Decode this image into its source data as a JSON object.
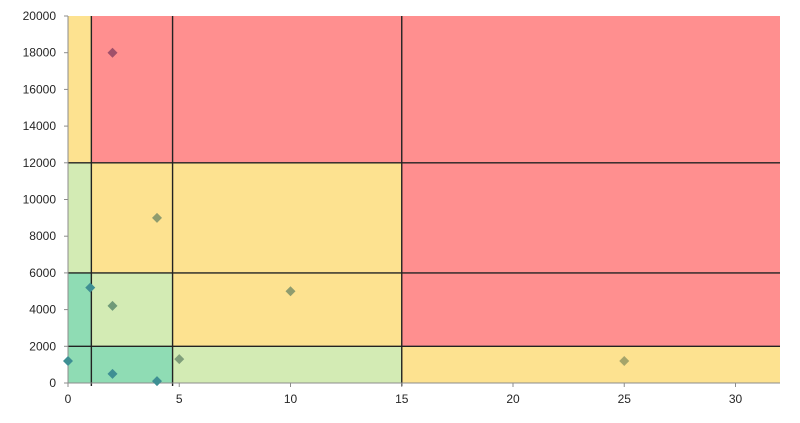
{
  "chart_data": {
    "type": "scatter",
    "title": "",
    "xlabel": "",
    "ylabel": "",
    "xlim": [
      0,
      32
    ],
    "ylim": [
      0,
      20000
    ],
    "x_ticks": [
      0,
      5,
      10,
      15,
      20,
      25,
      30
    ],
    "y_ticks": [
      0,
      2000,
      4000,
      6000,
      8000,
      10000,
      12000,
      14000,
      16000,
      18000,
      20000
    ],
    "grid": false,
    "legend": "none",
    "zone_colors": {
      "red": "#ff8f8f",
      "yellow": "#fde290",
      "lightgreen": "#d3ebb4",
      "green": "#8fdcb4",
      "divider": "#222222"
    },
    "zones": [
      {
        "x": [
          0,
          32
        ],
        "y": [
          12000,
          20000
        ],
        "color": "red"
      },
      {
        "x": [
          0,
          1.05
        ],
        "y": [
          12000,
          20000
        ],
        "color": "yellow"
      },
      {
        "x": [
          0,
          32
        ],
        "y": [
          6000,
          12000
        ],
        "color": "red"
      },
      {
        "x": [
          0,
          15
        ],
        "y": [
          6000,
          12000
        ],
        "color": "yellow"
      },
      {
        "x": [
          0,
          1.05
        ],
        "y": [
          6000,
          12000
        ],
        "color": "lightgreen"
      },
      {
        "x": [
          0,
          32
        ],
        "y": [
          2000,
          6000
        ],
        "color": "red"
      },
      {
        "x": [
          0,
          15
        ],
        "y": [
          2000,
          6000
        ],
        "color": "yellow"
      },
      {
        "x": [
          0,
          4.7
        ],
        "y": [
          2000,
          6000
        ],
        "color": "lightgreen"
      },
      {
        "x": [
          0,
          1.05
        ],
        "y": [
          2000,
          6000
        ],
        "color": "green"
      },
      {
        "x": [
          0,
          32
        ],
        "y": [
          0,
          2000
        ],
        "color": "yellow"
      },
      {
        "x": [
          0,
          15
        ],
        "y": [
          0,
          2000
        ],
        "color": "lightgreen"
      },
      {
        "x": [
          0,
          4.7
        ],
        "y": [
          0,
          2000
        ],
        "color": "green"
      }
    ],
    "divider_x": [
      1.05,
      4.7,
      15
    ],
    "divider_y": [
      2000,
      6000,
      12000
    ],
    "points": [
      {
        "x": 0,
        "y": 1200,
        "color": "#3e8f93"
      },
      {
        "x": 1,
        "y": 5200,
        "color": "#3e8f93"
      },
      {
        "x": 2,
        "y": 18000,
        "color": "#a0506a"
      },
      {
        "x": 2,
        "y": 4200,
        "color": "#6f9a78"
      },
      {
        "x": 2,
        "y": 500,
        "color": "#3e8f93"
      },
      {
        "x": 4,
        "y": 9000,
        "color": "#8f9c6e"
      },
      {
        "x": 4,
        "y": 100,
        "color": "#3e8f93"
      },
      {
        "x": 5,
        "y": 1300,
        "color": "#7f9e7a"
      },
      {
        "x": 10,
        "y": 5000,
        "color": "#8f9c6e"
      },
      {
        "x": 25,
        "y": 1200,
        "color": "#a5a46a"
      }
    ]
  }
}
